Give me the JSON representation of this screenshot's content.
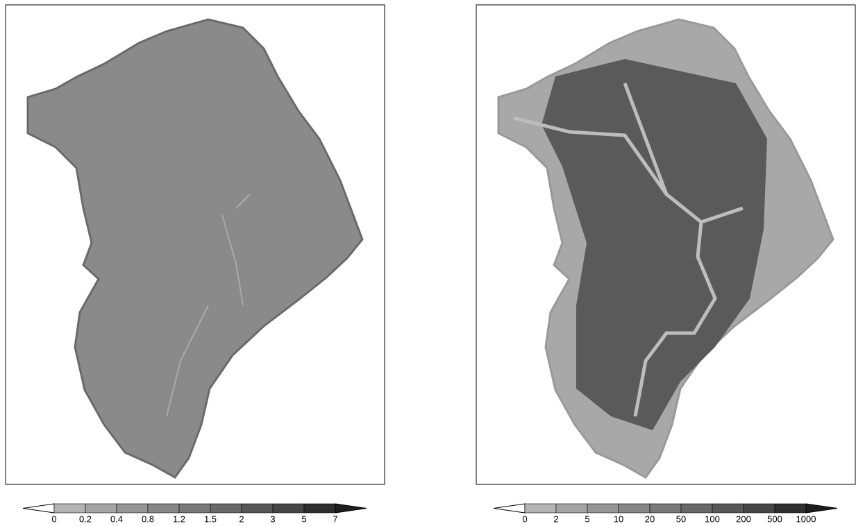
{
  "panels": [
    {
      "colorbar": {
        "labels": [
          "0",
          "0.2",
          "0.4",
          "0.8",
          "1.2",
          "1.5",
          "2",
          "3",
          "5",
          "7"
        ],
        "under_color": "#ffffff",
        "over_color": "#1e1e1e",
        "segment_colors": [
          "#b4b4b4",
          "#a4a4a4",
          "#959595",
          "#878787",
          "#797979",
          "#686868",
          "#575757",
          "#464646",
          "#2e2e2e"
        ]
      }
    },
    {
      "colorbar": {
        "labels": [
          "0",
          "2",
          "5",
          "10",
          "20",
          "50",
          "100",
          "200",
          "500",
          "1000"
        ],
        "under_color": "#ffffff",
        "over_color": "#1e1e1e",
        "segment_colors": [
          "#b4b4b4",
          "#a4a4a4",
          "#959595",
          "#878787",
          "#797979",
          "#686868",
          "#575757",
          "#464646",
          "#2e2e2e"
        ]
      }
    }
  ]
}
